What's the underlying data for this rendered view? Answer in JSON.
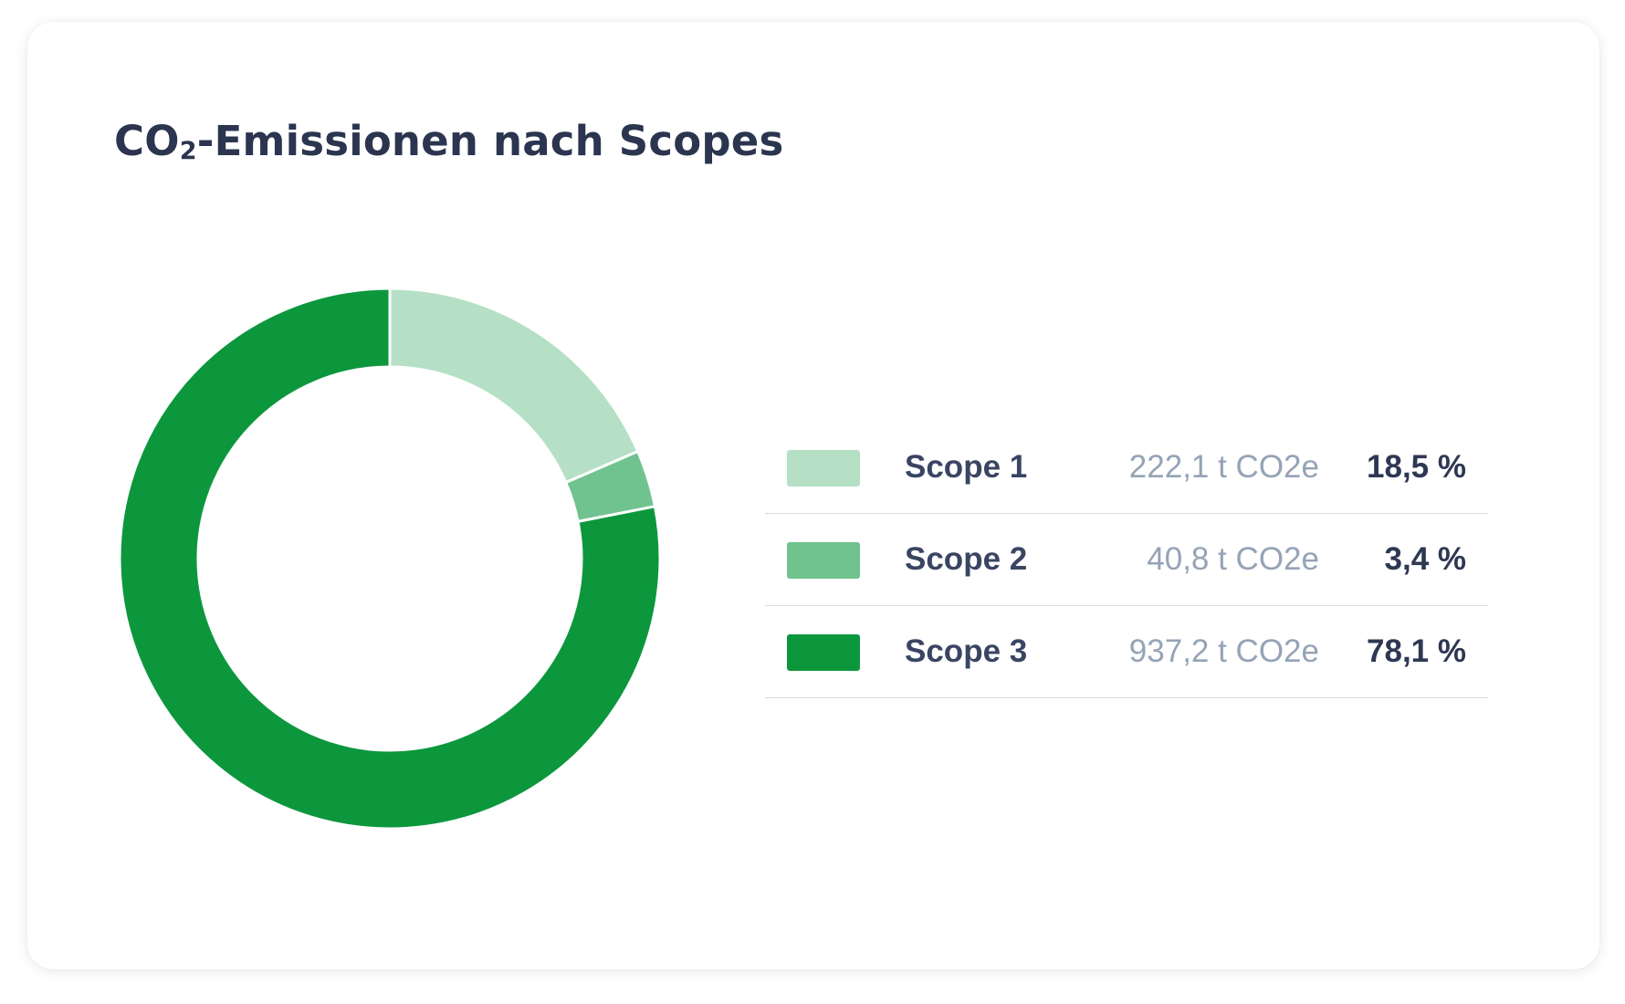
{
  "card": {
    "title_main": "CO",
    "title_sub": "2",
    "title_rest": "-Emissionen nach Scopes"
  },
  "chart_data": {
    "type": "pie",
    "variant": "donut",
    "title": "CO₂-Emissionen nach Scopes",
    "categories": [
      "Scope 1",
      "Scope 2",
      "Scope 3"
    ],
    "values": [
      222.1,
      40.8,
      937.2
    ],
    "unit": "t CO2e",
    "value_labels": [
      "222,1 t CO2e",
      "40,8 t CO2e",
      "937,2 t CO2e"
    ],
    "percentages": [
      18.5,
      3.4,
      78.1
    ],
    "percent_labels": [
      "18,5 %",
      "3,4 %",
      "78,1 %"
    ],
    "colors": [
      "#b5e0c5",
      "#70c28e",
      "#0c973d"
    ],
    "legend_position": "right"
  },
  "legend": {
    "items": [
      {
        "label": "Scope 1",
        "amount": "222,1 t CO2e",
        "percent": "18,5 %",
        "color": "#b5e0c5"
      },
      {
        "label": "Scope 2",
        "amount": "40,8 t CO2e",
        "percent": "3,4 %",
        "color": "#70c28e"
      },
      {
        "label": "Scope 3",
        "amount": "937,2 t CO2e",
        "percent": "78,1 %",
        "color": "#0c973d"
      }
    ]
  }
}
